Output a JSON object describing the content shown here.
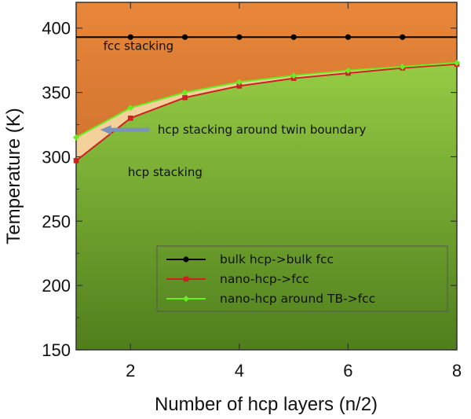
{
  "chart_data": {
    "type": "line",
    "title": "",
    "xlabel": "Number of hcp layers (n/2)",
    "ylabel": "Temperature (K)",
    "xlim": [
      1,
      8
    ],
    "ylim": [
      150,
      420
    ],
    "x_ticks": [
      2,
      4,
      6,
      8
    ],
    "y_ticks": [
      150,
      200,
      250,
      300,
      350,
      400
    ],
    "grid": false,
    "legend_position": "bottom-right",
    "series": [
      {
        "name": "bulk hcp->bulk fcc",
        "color": "#000000",
        "marker": "circle",
        "x": [
          1,
          2,
          3,
          4,
          5,
          6,
          7,
          8
        ],
        "y": [
          393,
          393,
          393,
          393,
          393,
          393,
          393,
          393
        ]
      },
      {
        "name": "nano-hcp->fcc",
        "color": "#cc2222",
        "marker": "square",
        "x": [
          1,
          2,
          3,
          4,
          5,
          6,
          7,
          8
        ],
        "y": [
          297,
          330,
          346,
          355,
          361,
          365,
          369,
          372
        ]
      },
      {
        "name": "nano-hcp around TB->fcc",
        "color": "#66ee22",
        "marker": "diamond",
        "x": [
          1,
          2,
          3,
          4,
          5,
          6,
          7,
          8
        ],
        "y": [
          315,
          338,
          350,
          358,
          363,
          367,
          370,
          373
        ]
      }
    ],
    "annotations": [
      {
        "text": "fcc stacking",
        "x": 1.5,
        "y": 383
      },
      {
        "text": "hcp stacking around twin boundary",
        "x": 2.5,
        "y": 318
      },
      {
        "text": "hcp stacking",
        "x": 1.95,
        "y": 285
      }
    ],
    "region_colors": {
      "fcc_top": "#e8873a",
      "fcc_bottom": "#b55a20",
      "twin_band": "#f4d09a",
      "hcp_top": "#96cc44",
      "hcp_bottom": "#4f7e1c",
      "arrow": "#7a93b8"
    }
  }
}
